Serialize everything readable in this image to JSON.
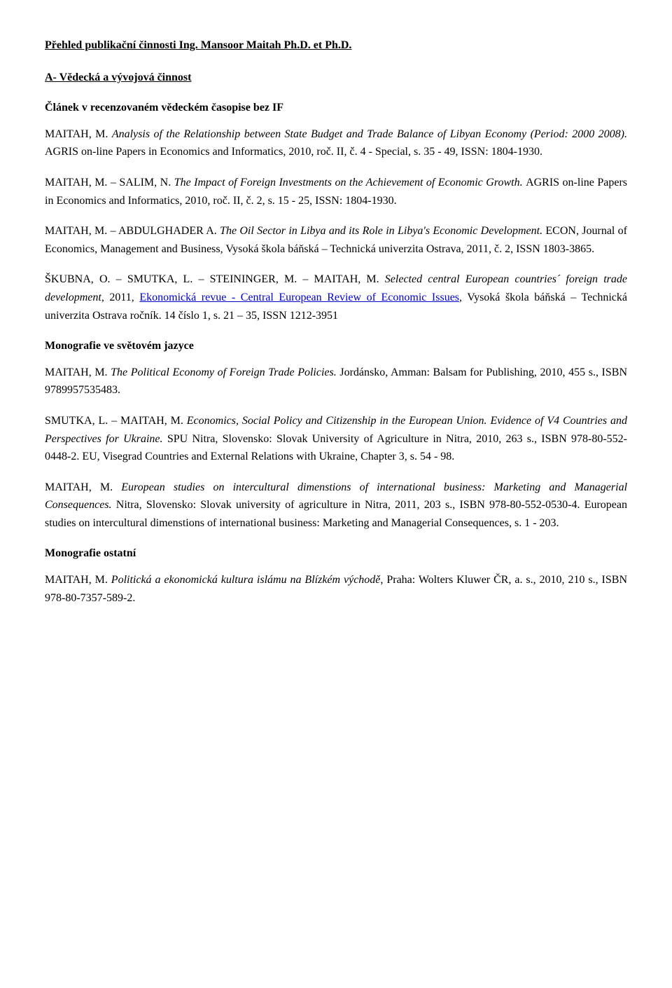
{
  "document_title": "Přehled publikační činnosti Ing. Mansoor Maitah Ph.D. et Ph.D.",
  "section_a_heading": "A- Vědecká a vývojová činnost",
  "subheading_clanek": "Článek v recenzovaném vědeckém časopise bez IF",
  "p1_lead": "MAITAH, M. ",
  "p1_title": "Analysis of the Relationship between State Budget and Trade Balance of Libyan Economy (Period: 2000 2008). ",
  "p1_tail": "AGRIS on-line Papers in Economics and Informatics, 2010, roč. II, č. 4 - Special, s. 35 - 49, ISSN: 1804-1930.",
  "p2_lead": "MAITAH, M. – SALIM, N. ",
  "p2_title": "The Impact of Foreign Investments on the Achievement of Economic Growth. ",
  "p2_tail": "AGRIS on-line Papers in Economics and Informatics, 2010, roč. II, č. 2, s. 15 - 25, ISSN: 1804-1930.",
  "p3_lead": "MAITAH, M. – ABDULGHADER A. ",
  "p3_title": "The Oil Sector in Libya and its Role in Libya's Economic Development. ",
  "p3_tail": "ECON, Journal of Economics, Management and Business, Vysoká škola báňská – Technická univerzita Ostrava, 2011, č. 2,  ISSN 1803-3865.",
  "p4_lead": "ŠKUBNA, O. – SMUTKA, L. – STEININGER, M. – MAITAH, M. ",
  "p4_title": "Selected central European countries´ foreign trade development",
  "p4_mid": ", 2011, ",
  "p4_link": "Ekonomická revue - Central European Review of Economic Issues",
  "p4_tail": ", Vysoká škola báňská – Technická univerzita Ostrava ročník. 14 číslo 1, s. 21 – 35, ISSN 1212-3951",
  "subheading_mono_world": "Monografie ve světovém jazyce",
  "p5_lead": "MAITAH, M. ",
  "p5_title": "The Political Economy of Foreign Trade Policies. ",
  "p5_tail": "Jordánsko, Amman: Balsam for Publishing, 2010, 455 s., ISBN 9789957535483.",
  "p6_lead": "SMUTKA, L. – MAITAH, M. ",
  "p6_title_a": "Economics, Social Policy and Citizenship in the European Union. Evidence of V4 Countries and Perspectives for Ukraine. ",
  "p6_tail": "SPU Nitra, Slovensko: Slovak University of Agriculture in Nitra, 2010, 263 s., ISBN 978-80-552-0448-2. EU, Visegrad  Countries and External Relations with Ukraine, Chapter 3, s. 54 - 98.",
  "p7_lead": "MAITAH, M. ",
  "p7_title": "European studies on intercultural dimenstions of international business: Marketing and Managerial Consequences. ",
  "p7_tail": "Nitra, Slovensko: Slovak university of agriculture in Nitra, 2011, 203 s., ISBN 978-80-552-0530-4.  European studies on intercultural dimenstions of international business: Marketing and  Managerial Consequences, s. 1 - 203.",
  "subheading_mono_other": "Monografie ostatní",
  "p8_lead": "MAITAH, M. ",
  "p8_title": "Politická a ekonomická kultura islámu na Blízkém východě, ",
  "p8_tail": "Praha: Wolters Kluwer ČR, a. s., 2010, 210 s., ISBN 978-80-7357-589-2."
}
